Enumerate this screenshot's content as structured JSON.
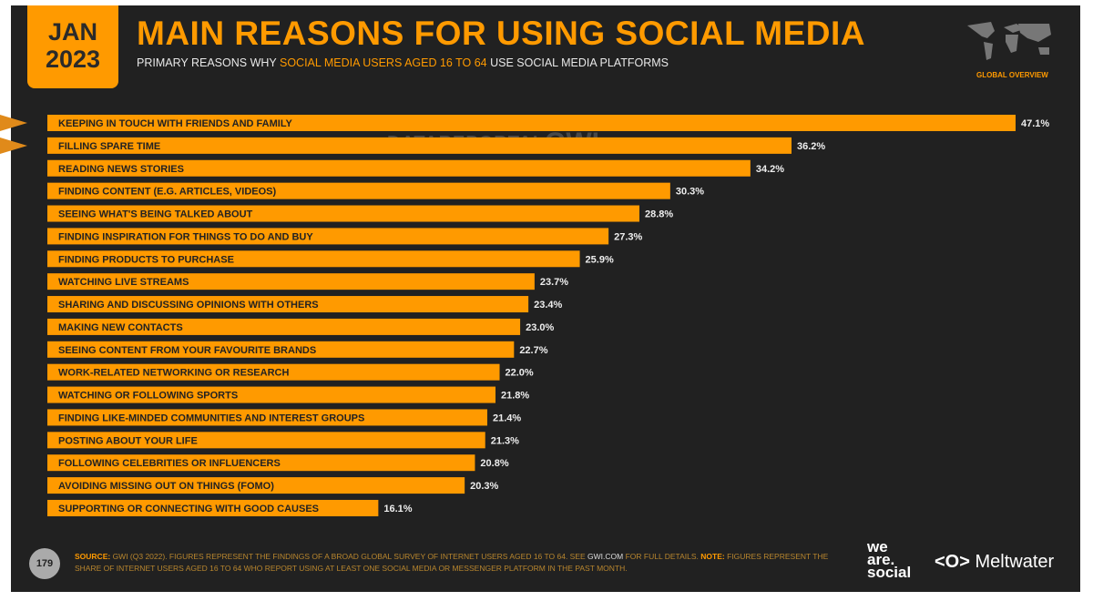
{
  "header": {
    "month": "JAN",
    "year": "2023",
    "title": "MAIN REASONS FOR USING SOCIAL MEDIA",
    "subtitle_pre": "PRIMARY REASONS WHY ",
    "subtitle_hl": "SOCIAL MEDIA USERS AGED 16 TO 64",
    "subtitle_post": " USE SOCIAL MEDIA PLATFORMS",
    "region": "GLOBAL OVERVIEW"
  },
  "watermark": {
    "a": "DATAREPORTAL",
    "b": "GWI."
  },
  "colors": {
    "bar": "#FF9A00",
    "background": "#212121",
    "arrow": "#E08A1A"
  },
  "chart_data": {
    "type": "bar",
    "orientation": "horizontal",
    "title": "MAIN REASONS FOR USING SOCIAL MEDIA",
    "categories": [
      "KEEPING IN TOUCH WITH FRIENDS AND FAMILY",
      "FILLING SPARE TIME",
      "READING NEWS STORIES",
      "FINDING CONTENT (E.G. ARTICLES, VIDEOS)",
      "SEEING WHAT'S BEING TALKED ABOUT",
      "FINDING INSPIRATION FOR THINGS TO DO AND BUY",
      "FINDING PRODUCTS TO PURCHASE",
      "WATCHING LIVE STREAMS",
      "SHARING AND DISCUSSING OPINIONS WITH OTHERS",
      "MAKING NEW CONTACTS",
      "SEEING CONTENT FROM YOUR FAVOURITE BRANDS",
      "WORK-RELATED NETWORKING OR RESEARCH",
      "WATCHING OR FOLLOWING SPORTS",
      "FINDING LIKE-MINDED COMMUNITIES AND INTEREST GROUPS",
      "POSTING ABOUT YOUR LIFE",
      "FOLLOWING CELEBRITIES OR INFLUENCERS",
      "AVOIDING MISSING OUT ON THINGS (FOMO)",
      "SUPPORTING OR CONNECTING WITH GOOD CAUSES"
    ],
    "values": [
      47.1,
      36.2,
      34.2,
      30.3,
      28.8,
      27.3,
      25.9,
      23.7,
      23.4,
      23.0,
      22.7,
      22.0,
      21.8,
      21.4,
      21.3,
      20.8,
      20.3,
      16.1
    ],
    "value_labels": [
      "47.1%",
      "36.2%",
      "34.2%",
      "30.3%",
      "28.8%",
      "27.3%",
      "25.9%",
      "23.7%",
      "23.4%",
      "23.0%",
      "22.7%",
      "22.0%",
      "21.8%",
      "21.4%",
      "21.3%",
      "20.8%",
      "20.3%",
      "16.1%"
    ],
    "unit": "%",
    "xlim": [
      0,
      47.1
    ],
    "highlighted": [
      0,
      1
    ]
  },
  "footer": {
    "page": "179",
    "source_label": "SOURCE:",
    "source_text": " GWI (Q3 2022). FIGURES REPRESENT THE FINDINGS OF A BROAD GLOBAL SURVEY OF INTERNET USERS AGED 16 TO 64. SEE ",
    "source_link": "GWI.COM",
    "source_text2": " FOR FULL DETAILS. ",
    "note_label": "NOTE:",
    "note_text": " FIGURES REPRESENT THE SHARE OF INTERNET USERS AGED 16 TO 64 WHO REPORT USING AT LEAST ONE SOCIAL MEDIA OR MESSENGER PLATFORM IN THE PAST MONTH.",
    "logo1": [
      "we",
      "are.",
      "social"
    ],
    "logo2": "Meltwater"
  }
}
